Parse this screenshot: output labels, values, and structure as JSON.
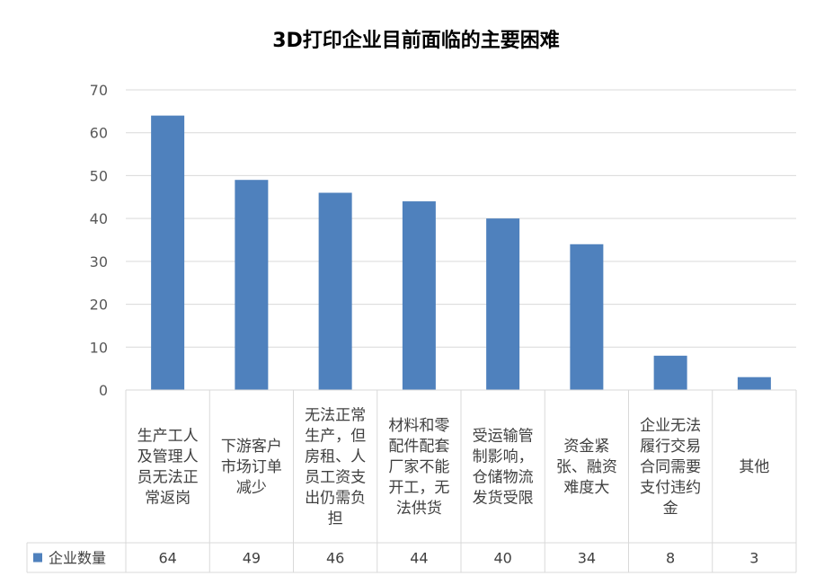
{
  "chart_data": {
    "type": "bar",
    "title": "3D打印企业目前面临的主要困难",
    "xlabel": "",
    "ylabel": "",
    "ylim": [
      0,
      70
    ],
    "yticks": [
      0,
      10,
      20,
      30,
      40,
      50,
      60,
      70
    ],
    "grid": true,
    "legend": "data-table-left",
    "bar_color": "#4F81BD",
    "categories": [
      "生产工人及管理人员无法正常返岗",
      "下游客户市场订单减少",
      "无法正常生产，但房租、人员工资支出仍需负担",
      "材料和零配件配套厂家不能开工，无法供货",
      "受运输管制影响，仓储物流发货受限",
      "资金紧张、融资难度大",
      "企业无法履行交易合同需要支付违约金",
      "其他"
    ],
    "category_lines": [
      [
        "生产工人",
        "及管理人",
        "员无法正",
        "常返岗"
      ],
      [
        "下游客户",
        "市场订单",
        "减少"
      ],
      [
        "无法正常",
        "生产，但",
        "房租、人",
        "员工资支",
        "出仍需负",
        "担"
      ],
      [
        "材料和零",
        "配件配套",
        "厂家不能",
        "开工，无",
        "法供货"
      ],
      [
        "受运输管",
        "制影响，",
        "仓储物流",
        "发货受限"
      ],
      [
        "资金紧",
        "张、融资",
        "难度大"
      ],
      [
        "企业无法",
        "履行交易",
        "合同需要",
        "支付违约",
        "金"
      ],
      [
        "其他"
      ]
    ],
    "series": [
      {
        "name": "企业数量",
        "values": [
          64,
          49,
          46,
          44,
          40,
          34,
          8,
          3
        ]
      }
    ]
  }
}
